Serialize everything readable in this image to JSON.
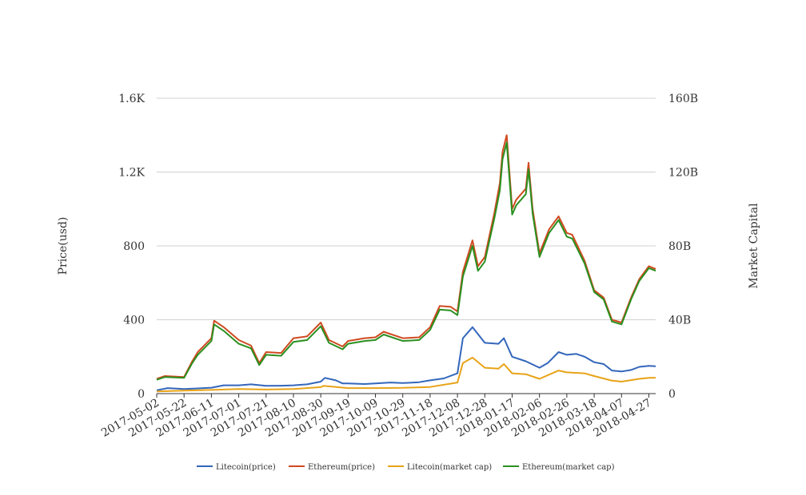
{
  "chart_data": {
    "type": "line",
    "title": "",
    "xlabel": "",
    "ylabel": "Price(usd)",
    "y2label": "Market Capital",
    "x_ticks": [
      "2017-05-02",
      "2017-05-22",
      "2017-06-11",
      "2017-07-01",
      "2017-07-21",
      "2017-08-10",
      "2017-08-30",
      "2017-09-19",
      "2017-10-09",
      "2017-10-29",
      "2017-11-18",
      "2017-12-08",
      "2017-12-28",
      "2018-01-17",
      "2018-02-06",
      "2018-02-26",
      "2018-03-18",
      "2018-04-07",
      "2018-04-27"
    ],
    "x_range": [
      "2017-05-02",
      "2018-05-02"
    ],
    "y_ticks": [
      "0",
      "400",
      "800",
      "1.2K",
      "1.6K"
    ],
    "y2_ticks": [
      "0",
      "40B",
      "80B",
      "120B",
      "160B"
    ],
    "ylim": [
      0,
      1600
    ],
    "y2lim": [
      0,
      160000000000
    ],
    "grid": true,
    "legend_position": "bottom",
    "series": [
      {
        "name": "Litecoin(price)",
        "axis": "left",
        "color": "#3366bb",
        "points": [
          [
            "2017-05-02",
            18
          ],
          [
            "2017-05-10",
            30
          ],
          [
            "2017-05-22",
            25
          ],
          [
            "2017-06-01",
            28
          ],
          [
            "2017-06-11",
            32
          ],
          [
            "2017-06-20",
            45
          ],
          [
            "2017-07-01",
            45
          ],
          [
            "2017-07-10",
            50
          ],
          [
            "2017-07-21",
            42
          ],
          [
            "2017-08-01",
            43
          ],
          [
            "2017-08-10",
            45
          ],
          [
            "2017-08-20",
            50
          ],
          [
            "2017-08-30",
            65
          ],
          [
            "2017-09-02",
            85
          ],
          [
            "2017-09-10",
            72
          ],
          [
            "2017-09-15",
            55
          ],
          [
            "2017-09-19",
            55
          ],
          [
            "2017-10-01",
            52
          ],
          [
            "2017-10-09",
            55
          ],
          [
            "2017-10-20",
            60
          ],
          [
            "2017-10-29",
            57
          ],
          [
            "2017-11-10",
            62
          ],
          [
            "2017-11-18",
            72
          ],
          [
            "2017-11-28",
            82
          ],
          [
            "2017-12-08",
            110
          ],
          [
            "2017-12-12",
            300
          ],
          [
            "2017-12-19",
            360
          ],
          [
            "2017-12-28",
            275
          ],
          [
            "2018-01-07",
            270
          ],
          [
            "2018-01-11",
            300
          ],
          [
            "2018-01-17",
            200
          ],
          [
            "2018-01-27",
            175
          ],
          [
            "2018-02-06",
            140
          ],
          [
            "2018-02-12",
            165
          ],
          [
            "2018-02-20",
            225
          ],
          [
            "2018-02-26",
            210
          ],
          [
            "2018-03-05",
            215
          ],
          [
            "2018-03-11",
            200
          ],
          [
            "2018-03-18",
            170
          ],
          [
            "2018-03-25",
            160
          ],
          [
            "2018-03-31",
            125
          ],
          [
            "2018-04-07",
            120
          ],
          [
            "2018-04-14",
            128
          ],
          [
            "2018-04-20",
            145
          ],
          [
            "2018-04-27",
            150
          ],
          [
            "2018-05-02",
            148
          ]
        ]
      },
      {
        "name": "Ethereum(price)",
        "axis": "left",
        "color": "#d04a20",
        "points": [
          [
            "2017-05-02",
            80
          ],
          [
            "2017-05-08",
            95
          ],
          [
            "2017-05-22",
            90
          ],
          [
            "2017-05-28",
            175
          ],
          [
            "2017-06-01",
            225
          ],
          [
            "2017-06-11",
            300
          ],
          [
            "2017-06-13",
            395
          ],
          [
            "2017-06-20",
            360
          ],
          [
            "2017-07-01",
            290
          ],
          [
            "2017-07-10",
            260
          ],
          [
            "2017-07-16",
            165
          ],
          [
            "2017-07-21",
            225
          ],
          [
            "2017-08-01",
            220
          ],
          [
            "2017-08-10",
            300
          ],
          [
            "2017-08-20",
            310
          ],
          [
            "2017-08-30",
            385
          ],
          [
            "2017-09-05",
            290
          ],
          [
            "2017-09-15",
            255
          ],
          [
            "2017-09-19",
            285
          ],
          [
            "2017-10-01",
            300
          ],
          [
            "2017-10-09",
            305
          ],
          [
            "2017-10-15",
            335
          ],
          [
            "2017-10-29",
            300
          ],
          [
            "2017-11-10",
            305
          ],
          [
            "2017-11-18",
            360
          ],
          [
            "2017-11-25",
            475
          ],
          [
            "2017-12-03",
            470
          ],
          [
            "2017-12-08",
            445
          ],
          [
            "2017-12-12",
            660
          ],
          [
            "2017-12-19",
            830
          ],
          [
            "2017-12-23",
            690
          ],
          [
            "2017-12-28",
            740
          ],
          [
            "2018-01-04",
            980
          ],
          [
            "2018-01-08",
            1140
          ],
          [
            "2018-01-10",
            1310
          ],
          [
            "2018-01-13",
            1400
          ],
          [
            "2018-01-17",
            1000
          ],
          [
            "2018-01-20",
            1050
          ],
          [
            "2018-01-27",
            1110
          ],
          [
            "2018-01-29",
            1250
          ],
          [
            "2018-02-01",
            1000
          ],
          [
            "2018-02-06",
            760
          ],
          [
            "2018-02-13",
            890
          ],
          [
            "2018-02-20",
            960
          ],
          [
            "2018-02-26",
            870
          ],
          [
            "2018-03-02",
            860
          ],
          [
            "2018-03-11",
            720
          ],
          [
            "2018-03-18",
            560
          ],
          [
            "2018-03-25",
            520
          ],
          [
            "2018-03-31",
            400
          ],
          [
            "2018-04-07",
            385
          ],
          [
            "2018-04-14",
            520
          ],
          [
            "2018-04-20",
            620
          ],
          [
            "2018-04-27",
            690
          ],
          [
            "2018-05-02",
            675
          ]
        ]
      },
      {
        "name": "Litecoin(market cap)",
        "axis": "right",
        "color": "#e8a317",
        "points": [
          [
            "2017-05-02",
            1200000000
          ],
          [
            "2017-05-22",
            1600000000
          ],
          [
            "2017-06-11",
            2000000000
          ],
          [
            "2017-07-01",
            2500000000
          ],
          [
            "2017-07-21",
            2200000000
          ],
          [
            "2017-08-10",
            2500000000
          ],
          [
            "2017-08-30",
            3500000000
          ],
          [
            "2017-09-01",
            4200000000
          ],
          [
            "2017-09-19",
            3000000000
          ],
          [
            "2017-10-09",
            3000000000
          ],
          [
            "2017-10-29",
            3100000000
          ],
          [
            "2017-11-18",
            3600000000
          ],
          [
            "2017-12-08",
            6000000000
          ],
          [
            "2017-12-12",
            16500000000
          ],
          [
            "2017-12-19",
            19500000000
          ],
          [
            "2017-12-28",
            14000000000
          ],
          [
            "2018-01-07",
            13500000000
          ],
          [
            "2018-01-11",
            16000000000
          ],
          [
            "2018-01-17",
            11000000000
          ],
          [
            "2018-01-27",
            10500000000
          ],
          [
            "2018-02-06",
            8000000000
          ],
          [
            "2018-02-20",
            12500000000
          ],
          [
            "2018-02-26",
            11500000000
          ],
          [
            "2018-03-11",
            11000000000
          ],
          [
            "2018-03-18",
            9500000000
          ],
          [
            "2018-03-31",
            7000000000
          ],
          [
            "2018-04-07",
            6500000000
          ],
          [
            "2018-04-20",
            8000000000
          ],
          [
            "2018-04-27",
            8500000000
          ],
          [
            "2018-05-02",
            8600000000
          ]
        ]
      },
      {
        "name": "Ethereum(market cap)",
        "axis": "right",
        "color": "#2a9020",
        "points": [
          [
            "2017-05-02",
            7500000000
          ],
          [
            "2017-05-08",
            9000000000
          ],
          [
            "2017-05-22",
            8500000000
          ],
          [
            "2017-05-28",
            16500000000
          ],
          [
            "2017-06-01",
            21000000000
          ],
          [
            "2017-06-11",
            28500000000
          ],
          [
            "2017-06-13",
            37500000000
          ],
          [
            "2017-06-20",
            34000000000
          ],
          [
            "2017-07-01",
            27000000000
          ],
          [
            "2017-07-10",
            24500000000
          ],
          [
            "2017-07-16",
            15500000000
          ],
          [
            "2017-07-21",
            21000000000
          ],
          [
            "2017-08-01",
            20500000000
          ],
          [
            "2017-08-10",
            28000000000
          ],
          [
            "2017-08-20",
            29000000000
          ],
          [
            "2017-08-30",
            36500000000
          ],
          [
            "2017-09-05",
            27500000000
          ],
          [
            "2017-09-15",
            24000000000
          ],
          [
            "2017-09-19",
            27000000000
          ],
          [
            "2017-10-01",
            28500000000
          ],
          [
            "2017-10-09",
            29000000000
          ],
          [
            "2017-10-15",
            32000000000
          ],
          [
            "2017-10-29",
            28500000000
          ],
          [
            "2017-11-10",
            29000000000
          ],
          [
            "2017-11-18",
            34500000000
          ],
          [
            "2017-11-25",
            45500000000
          ],
          [
            "2017-12-03",
            45000000000
          ],
          [
            "2017-12-08",
            42500000000
          ],
          [
            "2017-12-12",
            63500000000
          ],
          [
            "2017-12-19",
            80000000000
          ],
          [
            "2017-12-23",
            66500000000
          ],
          [
            "2017-12-28",
            71500000000
          ],
          [
            "2018-01-04",
            95000000000
          ],
          [
            "2018-01-08",
            110000000000
          ],
          [
            "2018-01-10",
            127000000000
          ],
          [
            "2018-01-13",
            136000000000
          ],
          [
            "2018-01-17",
            97000000000
          ],
          [
            "2018-01-20",
            102000000000
          ],
          [
            "2018-01-27",
            108000000000
          ],
          [
            "2018-01-29",
            121500000000
          ],
          [
            "2018-02-01",
            97500000000
          ],
          [
            "2018-02-06",
            74000000000
          ],
          [
            "2018-02-13",
            87000000000
          ],
          [
            "2018-02-20",
            94000000000
          ],
          [
            "2018-02-26",
            85000000000
          ],
          [
            "2018-03-02",
            84000000000
          ],
          [
            "2018-03-11",
            70500000000
          ],
          [
            "2018-03-18",
            55000000000
          ],
          [
            "2018-03-25",
            51000000000
          ],
          [
            "2018-03-31",
            39000000000
          ],
          [
            "2018-04-07",
            37500000000
          ],
          [
            "2018-04-14",
            51000000000
          ],
          [
            "2018-04-20",
            61000000000
          ],
          [
            "2018-04-27",
            68000000000
          ],
          [
            "2018-05-02",
            66500000000
          ]
        ]
      }
    ]
  }
}
